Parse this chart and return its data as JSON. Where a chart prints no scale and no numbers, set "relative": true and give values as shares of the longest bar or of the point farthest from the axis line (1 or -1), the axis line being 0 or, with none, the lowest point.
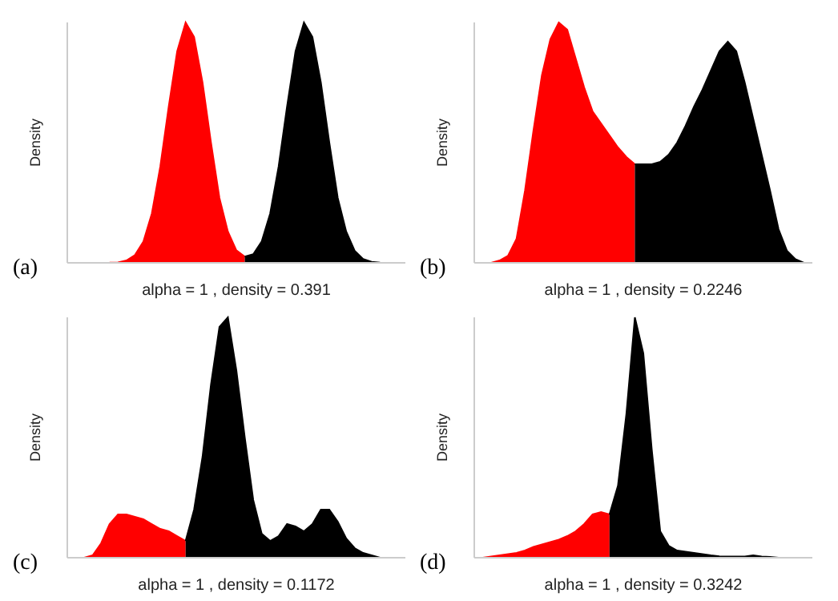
{
  "chart_data": [
    {
      "type": "area",
      "relative": true,
      "legend": false,
      "grid": false,
      "xlabel": "alpha = 1 , density = 0.391",
      "ylabel": "Density",
      "annotations": [
        "(a)"
      ],
      "categories": [
        null,
        null,
        null,
        null,
        null,
        null,
        null,
        null,
        null,
        null,
        null,
        null,
        null,
        null,
        null,
        null,
        null,
        null,
        null,
        null,
        null,
        null,
        null,
        null,
        null,
        null,
        null,
        null,
        null,
        null,
        null,
        null,
        null,
        null,
        null,
        null,
        null,
        null,
        null,
        null,
        null
      ],
      "series": [
        {
          "color": "#ff0000",
          "values": [
            0,
            0,
            0,
            0,
            0,
            0.0005,
            0.002,
            0.01,
            0.032,
            0.088,
            0.205,
            0.4,
            0.65,
            0.88,
            1,
            0.94,
            0.75,
            0.5,
            0.27,
            0.13,
            0.052,
            0.026,
            null,
            null,
            null,
            null,
            null,
            null,
            null,
            null,
            null,
            null,
            null,
            null,
            null,
            null,
            null,
            null,
            null,
            null,
            null
          ]
        },
        {
          "color": "#000000",
          "values": [
            null,
            null,
            null,
            null,
            null,
            null,
            null,
            null,
            null,
            null,
            null,
            null,
            null,
            null,
            null,
            null,
            null,
            null,
            null,
            null,
            null,
            0.026,
            0.036,
            0.089,
            0.205,
            0.4,
            0.65,
            0.88,
            1,
            0.94,
            0.75,
            0.5,
            0.27,
            0.13,
            0.05,
            0.016,
            0.004,
            0.001,
            0,
            0,
            0
          ]
        }
      ]
    },
    {
      "type": "area",
      "relative": true,
      "legend": false,
      "grid": false,
      "xlabel": "alpha = 1 , density = 0.2246",
      "ylabel": "Density",
      "annotations": [
        "(b)"
      ],
      "categories": [
        null,
        null,
        null,
        null,
        null,
        null,
        null,
        null,
        null,
        null,
        null,
        null,
        null,
        null,
        null,
        null,
        null,
        null,
        null,
        null,
        null,
        null,
        null,
        null,
        null,
        null,
        null,
        null,
        null,
        null,
        null,
        null,
        null,
        null,
        null,
        null,
        null,
        null,
        null,
        null,
        null
      ],
      "series": [
        {
          "color": "#ff0000",
          "values": [
            0,
            0,
            0,
            0.01,
            0.03,
            0.1,
            0.3,
            0.55,
            0.78,
            0.93,
            1,
            0.97,
            0.85,
            0.73,
            0.63,
            0.58,
            0.53,
            0.48,
            0.44,
            0.41,
            null,
            null,
            null,
            null,
            null,
            null,
            null,
            null,
            null,
            null,
            null,
            null,
            null,
            null,
            null,
            null,
            null,
            null,
            null,
            null,
            null
          ]
        },
        {
          "color": "#000000",
          "values": [
            null,
            null,
            null,
            null,
            null,
            null,
            null,
            null,
            null,
            null,
            null,
            null,
            null,
            null,
            null,
            null,
            null,
            null,
            null,
            0.41,
            0.41,
            0.41,
            0.42,
            0.45,
            0.5,
            0.57,
            0.65,
            0.72,
            0.8,
            0.88,
            0.92,
            0.88,
            0.75,
            0.6,
            0.45,
            0.3,
            0.14,
            0.05,
            0.015,
            0,
            0
          ]
        }
      ]
    },
    {
      "type": "area",
      "relative": true,
      "legend": false,
      "grid": false,
      "xlabel": "alpha = 1 , density = 0.1172",
      "ylabel": "Density",
      "annotations": [
        "(c)"
      ],
      "categories": [
        null,
        null,
        null,
        null,
        null,
        null,
        null,
        null,
        null,
        null,
        null,
        null,
        null,
        null,
        null,
        null,
        null,
        null,
        null,
        null,
        null,
        null,
        null,
        null,
        null,
        null,
        null,
        null,
        null,
        null,
        null,
        null,
        null,
        null,
        null,
        null,
        null,
        null,
        null,
        null,
        null
      ],
      "series": [
        {
          "color": "#ff0000",
          "values": [
            0,
            0,
            0,
            0.01,
            0.06,
            0.14,
            0.18,
            0.18,
            0.17,
            0.16,
            0.14,
            0.12,
            0.11,
            0.09,
            0.07,
            null,
            null,
            null,
            null,
            null,
            null,
            null,
            null,
            null,
            null,
            null,
            null,
            null,
            null,
            null,
            null,
            null,
            null,
            null,
            null,
            null,
            null,
            null,
            null,
            null,
            null
          ]
        },
        {
          "color": "#000000",
          "values": [
            null,
            null,
            null,
            null,
            null,
            null,
            null,
            null,
            null,
            null,
            null,
            null,
            null,
            null,
            0.07,
            0.2,
            0.42,
            0.72,
            0.96,
            1,
            0.78,
            0.5,
            0.24,
            0.1,
            0.07,
            0.09,
            0.14,
            0.13,
            0.11,
            0.14,
            0.2,
            0.2,
            0.15,
            0.08,
            0.04,
            0.02,
            0.01,
            0,
            0,
            0,
            0
          ]
        }
      ]
    },
    {
      "type": "area",
      "relative": true,
      "legend": false,
      "grid": false,
      "xlabel": "alpha = 1 , density = 0.3242",
      "ylabel": "Density",
      "annotations": [
        "(d)"
      ],
      "categories": [
        null,
        null,
        null,
        null,
        null,
        null,
        null,
        null,
        null,
        null,
        null,
        null,
        null,
        null,
        null,
        null,
        null,
        null,
        null,
        null,
        null,
        null,
        null,
        null,
        null,
        null,
        null,
        null,
        null,
        null,
        null,
        null,
        null,
        null,
        null,
        null,
        null,
        null,
        null,
        null,
        null
      ],
      "series": [
        {
          "color": "#ff0000",
          "values": [
            0,
            0,
            0.005,
            0.01,
            0.015,
            0.02,
            0.03,
            0.045,
            0.055,
            0.065,
            0.075,
            0.09,
            0.11,
            0.14,
            0.18,
            0.19,
            0.18,
            null,
            null,
            null,
            null,
            null,
            null,
            null,
            null,
            null,
            null,
            null,
            null,
            null,
            null,
            null,
            null,
            null,
            null,
            null,
            null,
            null,
            null,
            null,
            null
          ]
        },
        {
          "color": "#000000",
          "values": [
            null,
            null,
            null,
            null,
            null,
            null,
            null,
            null,
            null,
            null,
            null,
            null,
            null,
            null,
            null,
            null,
            0.18,
            0.3,
            0.6,
            1,
            0.85,
            0.45,
            0.11,
            0.05,
            0.03,
            0.025,
            0.02,
            0.015,
            0.01,
            0.006,
            0.005,
            0.005,
            0.005,
            0.01,
            0.005,
            0.003,
            0,
            0,
            0,
            0,
            0
          ]
        }
      ]
    }
  ]
}
